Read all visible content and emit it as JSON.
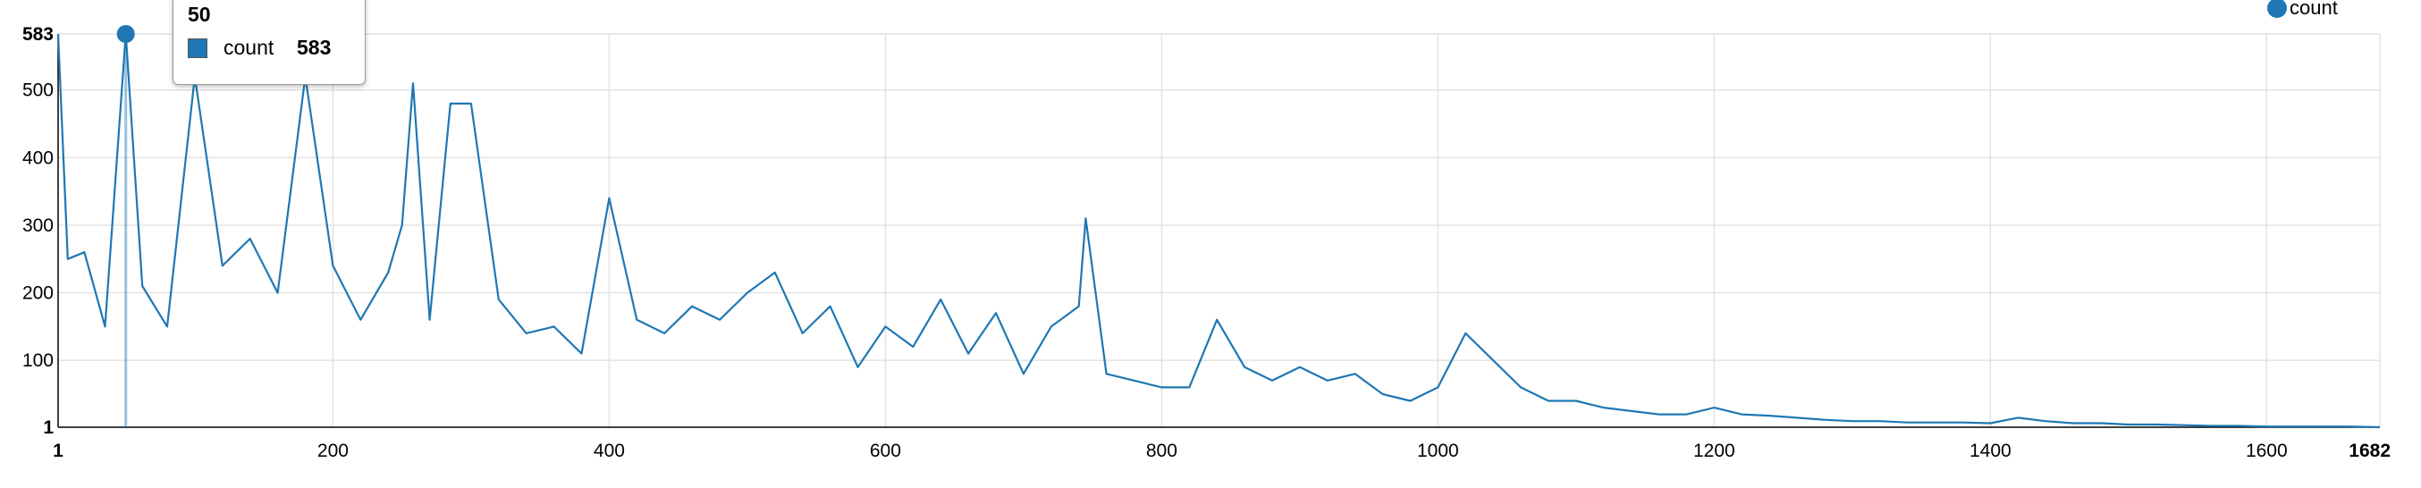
{
  "chart_data": {
    "type": "line",
    "xlim": [
      1,
      1682
    ],
    "ylim": [
      1,
      583
    ],
    "x_ticks": [
      1,
      200,
      400,
      600,
      800,
      1000,
      1200,
      1400,
      1600,
      1682
    ],
    "y_ticks": [
      1,
      100,
      200,
      300,
      400,
      500,
      583
    ],
    "grid": true,
    "legend_position": "top-right",
    "series": [
      {
        "name": "count",
        "color": "#1f77b4",
        "points": [
          [
            1,
            583
          ],
          [
            8,
            250
          ],
          [
            20,
            260
          ],
          [
            35,
            150
          ],
          [
            50,
            583
          ],
          [
            62,
            210
          ],
          [
            80,
            150
          ],
          [
            100,
            520
          ],
          [
            120,
            240
          ],
          [
            140,
            280
          ],
          [
            160,
            200
          ],
          [
            180,
            520
          ],
          [
            200,
            240
          ],
          [
            220,
            160
          ],
          [
            240,
            230
          ],
          [
            250,
            300
          ],
          [
            258,
            510
          ],
          [
            270,
            160
          ],
          [
            285,
            480
          ],
          [
            300,
            480
          ],
          [
            320,
            190
          ],
          [
            340,
            140
          ],
          [
            360,
            150
          ],
          [
            380,
            110
          ],
          [
            400,
            340
          ],
          [
            420,
            160
          ],
          [
            440,
            140
          ],
          [
            460,
            180
          ],
          [
            480,
            160
          ],
          [
            500,
            200
          ],
          [
            520,
            230
          ],
          [
            540,
            140
          ],
          [
            560,
            180
          ],
          [
            580,
            90
          ],
          [
            600,
            150
          ],
          [
            620,
            120
          ],
          [
            640,
            190
          ],
          [
            660,
            110
          ],
          [
            680,
            170
          ],
          [
            700,
            80
          ],
          [
            720,
            150
          ],
          [
            740,
            180
          ],
          [
            745,
            310
          ],
          [
            760,
            80
          ],
          [
            780,
            70
          ],
          [
            800,
            60
          ],
          [
            820,
            60
          ],
          [
            840,
            160
          ],
          [
            860,
            90
          ],
          [
            880,
            70
          ],
          [
            900,
            90
          ],
          [
            920,
            70
          ],
          [
            940,
            80
          ],
          [
            960,
            50
          ],
          [
            980,
            40
          ],
          [
            1000,
            60
          ],
          [
            1020,
            140
          ],
          [
            1040,
            100
          ],
          [
            1060,
            60
          ],
          [
            1080,
            40
          ],
          [
            1100,
            40
          ],
          [
            1120,
            30
          ],
          [
            1140,
            25
          ],
          [
            1160,
            20
          ],
          [
            1180,
            20
          ],
          [
            1200,
            30
          ],
          [
            1220,
            20
          ],
          [
            1240,
            18
          ],
          [
            1260,
            15
          ],
          [
            1280,
            12
          ],
          [
            1300,
            10
          ],
          [
            1320,
            10
          ],
          [
            1340,
            8
          ],
          [
            1360,
            8
          ],
          [
            1380,
            8
          ],
          [
            1400,
            7
          ],
          [
            1420,
            15
          ],
          [
            1440,
            10
          ],
          [
            1460,
            7
          ],
          [
            1480,
            7
          ],
          [
            1500,
            5
          ],
          [
            1520,
            5
          ],
          [
            1540,
            4
          ],
          [
            1560,
            3
          ],
          [
            1580,
            3
          ],
          [
            1600,
            2
          ],
          [
            1620,
            2
          ],
          [
            1640,
            2
          ],
          [
            1660,
            2
          ],
          [
            1682,
            1
          ]
        ]
      }
    ],
    "tooltip": {
      "x": "50",
      "series_name": "count",
      "value": "583"
    }
  }
}
